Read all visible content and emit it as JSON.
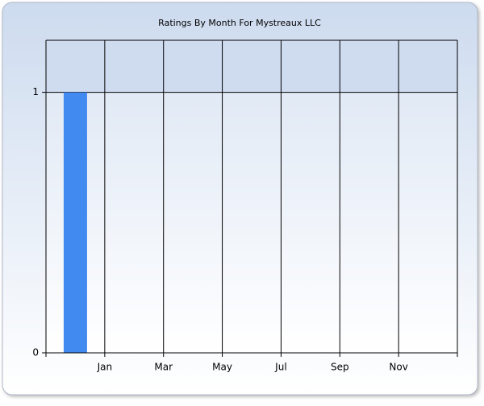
{
  "chart_data": {
    "type": "bar",
    "title": "Ratings By Month For Mystreaux LLC",
    "categories": [
      null,
      null,
      "Jan",
      null,
      "Mar",
      null,
      "May",
      null,
      "Jul",
      null,
      "Sep",
      null,
      "Nov",
      null,
      null
    ],
    "values": [
      0,
      1,
      0,
      0,
      0,
      0,
      0,
      0,
      0,
      0,
      0,
      0,
      0,
      0,
      0
    ],
    "color": "#418af0",
    "ylim": [
      0,
      1.2
    ],
    "yticks": [
      0,
      1
    ],
    "grid": true
  }
}
